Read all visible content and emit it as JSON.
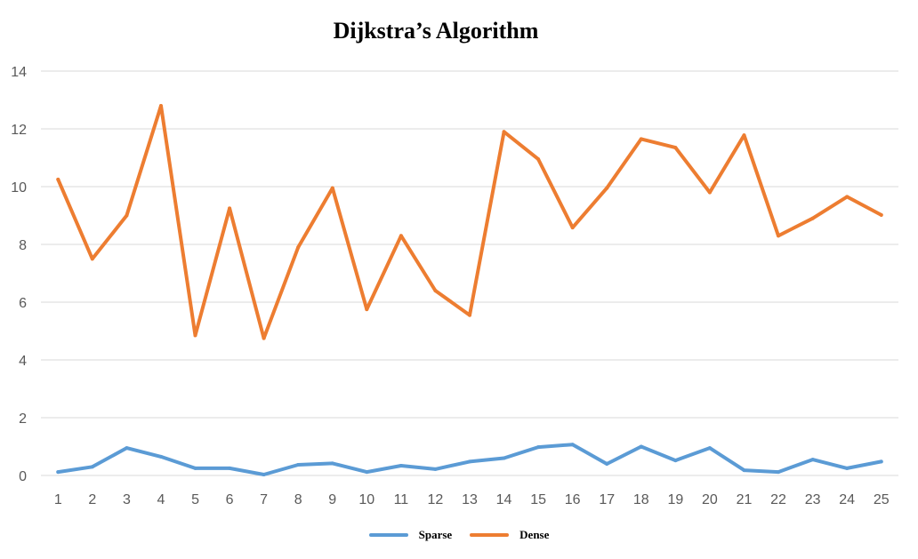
{
  "chart_data": {
    "type": "line",
    "title": "Dijkstra’s Algorithm",
    "xlabel": "",
    "ylabel": "",
    "x": [
      1,
      2,
      3,
      4,
      5,
      6,
      7,
      8,
      9,
      10,
      11,
      12,
      13,
      14,
      15,
      16,
      17,
      18,
      19,
      20,
      21,
      22,
      23,
      24,
      25
    ],
    "ylim": [
      0,
      14
    ],
    "yticks": [
      0,
      2,
      4,
      6,
      8,
      10,
      12,
      14
    ],
    "grid": true,
    "legend_position": "bottom",
    "series": [
      {
        "name": "Sparse",
        "color": "#5b9bd5",
        "values": [
          0.12,
          0.3,
          0.95,
          0.65,
          0.25,
          0.25,
          0.03,
          0.37,
          0.42,
          0.12,
          0.34,
          0.22,
          0.48,
          0.6,
          0.98,
          1.07,
          0.4,
          1.0,
          0.52,
          0.95,
          0.18,
          0.12,
          0.55,
          0.25,
          0.48
        ]
      },
      {
        "name": "Dense",
        "color": "#ed7d31",
        "values": [
          10.25,
          7.5,
          9.0,
          12.8,
          4.85,
          9.25,
          4.75,
          7.9,
          9.95,
          5.75,
          8.3,
          6.4,
          5.55,
          11.9,
          10.95,
          8.58,
          9.95,
          11.65,
          11.35,
          9.8,
          11.78,
          8.3,
          8.9,
          9.65,
          9.02
        ]
      }
    ]
  }
}
